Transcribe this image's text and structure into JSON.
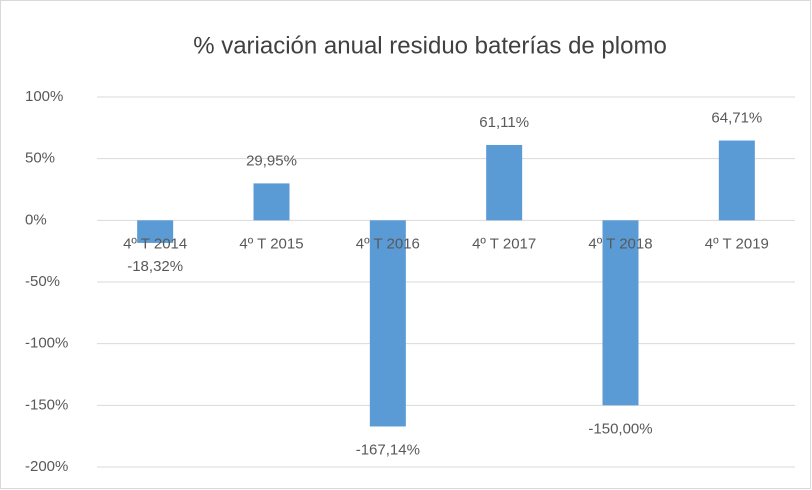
{
  "chart_data": {
    "type": "bar",
    "title": "% variación anual residuo baterías de plomo",
    "categories": [
      "4º T 2014",
      "4º T 2015",
      "4º T 2016",
      "4º T 2017",
      "4º T 2018",
      "4º T 2019"
    ],
    "values": [
      -18.32,
      29.95,
      -167.14,
      61.11,
      -150.0,
      64.71
    ],
    "value_labels": [
      "-18,32%",
      "29,95%",
      "-167,14%",
      "61,11%",
      "-150,00%",
      "64,71%"
    ],
    "color": "#5b9bd5",
    "ylim": [
      -200,
      100
    ],
    "yticks": [
      {
        "value": 100,
        "label": "100%"
      },
      {
        "value": 50,
        "label": "50%"
      },
      {
        "value": 0,
        "label": "0%"
      },
      {
        "value": -50,
        "label": "-50%"
      },
      {
        "value": -100,
        "label": "-100%"
      },
      {
        "value": -150,
        "label": "-150%"
      },
      {
        "value": -200,
        "label": "-200%"
      }
    ],
    "grid": true
  }
}
